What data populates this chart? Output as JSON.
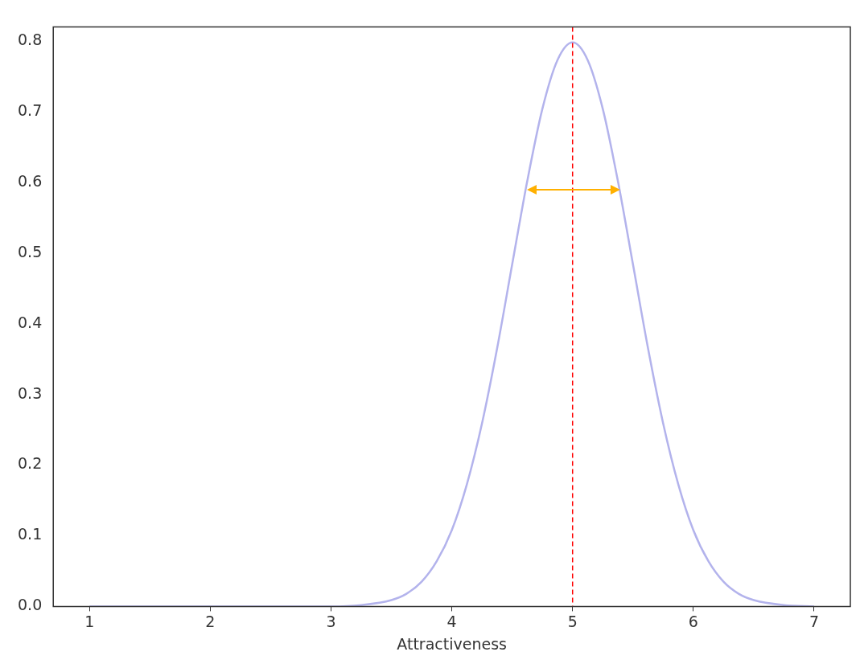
{
  "chart_data": {
    "type": "line",
    "xlabel": "Attractiveness",
    "series": [
      {
        "color": "#b3b3ec",
        "x": [
          1,
          2,
          3,
          3.25,
          3.5,
          3.625,
          3.75,
          3.875,
          4,
          4.125,
          4.25,
          4.375,
          4.5,
          4.625,
          4.75,
          4.875,
          5,
          5.125,
          5.25,
          5.375,
          5.5,
          5.625,
          5.75,
          5.875,
          6,
          6.125,
          6.25,
          6.375,
          6.5,
          6.75,
          7
        ],
        "values": [
          0,
          0,
          0,
          0.002,
          0.009,
          0.018,
          0.035,
          0.064,
          0.108,
          0.173,
          0.259,
          0.365,
          0.484,
          0.602,
          0.704,
          0.773,
          0.798,
          0.773,
          0.704,
          0.602,
          0.484,
          0.365,
          0.259,
          0.173,
          0.108,
          0.064,
          0.035,
          0.018,
          0.009,
          0.002,
          0
        ]
      }
    ],
    "xlim": [
      0.7,
      7.3
    ],
    "xticks": [
      1,
      2,
      3,
      4,
      5,
      6,
      7
    ],
    "ylim": [
      0,
      0.82
    ],
    "yticks": [
      {
        "value": 0,
        "label": "0.0"
      },
      {
        "value": 0.1,
        "label": "0.1"
      },
      {
        "value": 0.2,
        "label": "0.2"
      },
      {
        "value": 0.3,
        "label": "0.3"
      },
      {
        "value": 0.4,
        "label": "0.4"
      },
      {
        "value": 0.5,
        "label": "0.5"
      },
      {
        "value": 0.6,
        "label": "0.6"
      },
      {
        "value": 0.7,
        "label": "0.7"
      },
      {
        "value": 0.8,
        "label": "0.8"
      }
    ],
    "ref_lines": [
      {
        "axis": "x",
        "value": 5,
        "color": "#ff0000",
        "line_style": "dashed"
      }
    ],
    "grid": false,
    "legend": false,
    "marker": "none",
    "line_style": "solid"
  }
}
